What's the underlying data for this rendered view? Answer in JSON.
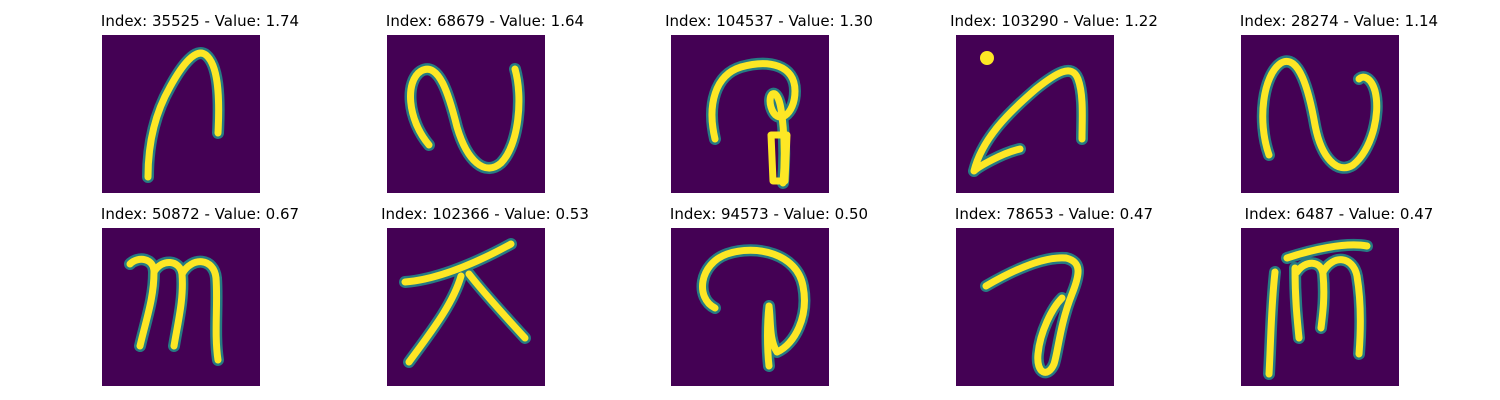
{
  "colors": {
    "background": "#440154",
    "edge": "#21918c",
    "stroke": "#fde725"
  },
  "panels": [
    {
      "title": "Index: 35525 - Value: 1.74",
      "glyph": "handwritten-arch"
    },
    {
      "title": "Index: 68679 - Value: 1.64",
      "glyph": "handwritten-tilde-loop"
    },
    {
      "title": "Index: 104537 - Value: 1.30",
      "glyph": "handwritten-hook-loop"
    },
    {
      "title": "Index: 103290 - Value: 1.22",
      "glyph": "handwritten-diagonal-hook-with-dot"
    },
    {
      "title": "Index: 28274 - Value: 1.14",
      "glyph": "handwritten-tilde-loop"
    },
    {
      "title": "Index: 50872 - Value: 0.67",
      "glyph": "handwritten-m"
    },
    {
      "title": "Index: 102366 - Value: 0.53",
      "glyph": "handwritten-cross-strokes"
    },
    {
      "title": "Index: 94573 - Value: 0.50",
      "glyph": "handwritten-open-loop"
    },
    {
      "title": "Index: 78653 - Value: 0.47",
      "glyph": "handwritten-hook-oval"
    },
    {
      "title": "Index: 6487 - Value: 0.47",
      "glyph": "handwritten-m-with-bar"
    }
  ]
}
